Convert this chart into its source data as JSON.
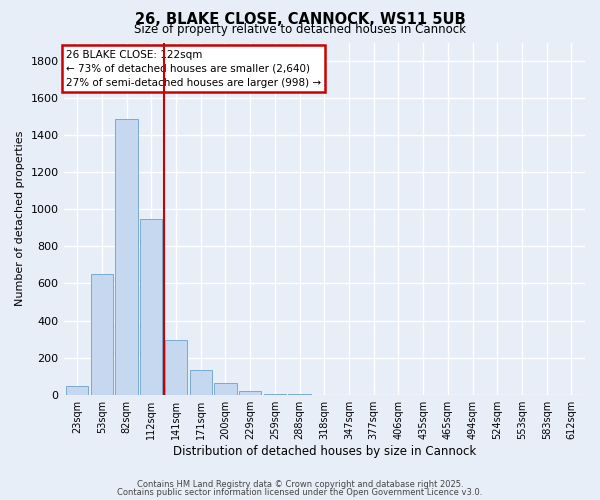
{
  "title": "26, BLAKE CLOSE, CANNOCK, WS11 5UB",
  "subtitle": "Size of property relative to detached houses in Cannock",
  "xlabel": "Distribution of detached houses by size in Cannock",
  "ylabel": "Number of detached properties",
  "bar_labels": [
    "23sqm",
    "53sqm",
    "82sqm",
    "112sqm",
    "141sqm",
    "171sqm",
    "200sqm",
    "229sqm",
    "259sqm",
    "288sqm",
    "318sqm",
    "347sqm",
    "377sqm",
    "406sqm",
    "435sqm",
    "465sqm",
    "494sqm",
    "524sqm",
    "553sqm",
    "583sqm",
    "612sqm"
  ],
  "bar_values": [
    45,
    650,
    1490,
    950,
    295,
    135,
    65,
    20,
    5,
    2,
    1,
    0,
    0,
    0,
    0,
    0,
    0,
    0,
    0,
    0,
    0
  ],
  "bar_color": "#c5d8f0",
  "bar_edge_color": "#7aaad0",
  "vline_x_idx": 3.5,
  "vline_color": "#cc0000",
  "ylim": [
    0,
    1900
  ],
  "yticks": [
    0,
    200,
    400,
    600,
    800,
    1000,
    1200,
    1400,
    1600,
    1800
  ],
  "annotation_title": "26 BLAKE CLOSE: 122sqm",
  "annotation_line1": "← 73% of detached houses are smaller (2,640)",
  "annotation_line2": "27% of semi-detached houses are larger (998) →",
  "annotation_box_color": "#cc0000",
  "footnote1": "Contains HM Land Registry data © Crown copyright and database right 2025.",
  "footnote2": "Contains public sector information licensed under the Open Government Licence v3.0.",
  "bg_color": "#e8eef8",
  "grid_color": "#ffffff"
}
